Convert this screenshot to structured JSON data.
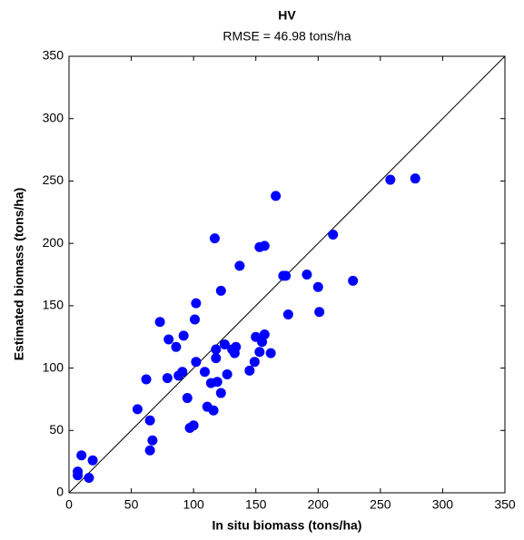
{
  "chart_data": {
    "type": "scatter",
    "title": "HV",
    "subtitle": "RMSE = 46.98 tons/ha",
    "x_label": "In situ biomass (tons/ha)",
    "y_label": "Estimated biomass (tons/ha)",
    "color": "#0000ff",
    "x": [
      7,
      7,
      10,
      16,
      19,
      55,
      62,
      65,
      65,
      67,
      73,
      79,
      80,
      86,
      88,
      91,
      92,
      95,
      97,
      100,
      101,
      102,
      102,
      109,
      111,
      114,
      116,
      117,
      118,
      118,
      119,
      122,
      122,
      125,
      127,
      131,
      133,
      134,
      137,
      145,
      149,
      150,
      153,
      153,
      155,
      157,
      157,
      162,
      166,
      172,
      174,
      176,
      191,
      200,
      201,
      212,
      228,
      258,
      278
    ],
    "values": [
      17,
      14,
      30,
      12,
      26,
      67,
      91,
      58,
      34,
      42,
      137,
      92,
      123,
      117,
      94,
      97,
      126,
      76,
      52,
      54,
      139,
      152,
      105,
      97,
      69,
      88,
      66,
      204,
      115,
      108,
      89,
      80,
      162,
      119,
      95,
      115,
      112,
      117,
      182,
      98,
      105,
      125,
      197,
      113,
      121,
      198,
      127,
      112,
      238,
      174,
      174,
      143,
      175,
      165,
      145,
      207,
      170,
      251,
      252
    ],
    "xlim": [
      0,
      350
    ],
    "ylim": [
      0,
      350
    ],
    "xticks": [
      0,
      50,
      100,
      150,
      200,
      250,
      300,
      350
    ],
    "yticks": [
      0,
      50,
      100,
      150,
      200,
      250,
      300,
      350
    ]
  }
}
